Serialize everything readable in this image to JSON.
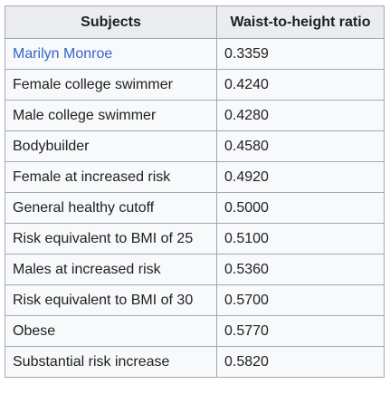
{
  "table": {
    "headers": [
      "Subjects",
      "Waist-to-height ratio"
    ],
    "rows": [
      {
        "subject": "Marilyn Monroe",
        "ratio": "0.3359",
        "is_link": true
      },
      {
        "subject": "Female college swimmer",
        "ratio": "0.4240",
        "is_link": false
      },
      {
        "subject": "Male college swimmer",
        "ratio": "0.4280",
        "is_link": false
      },
      {
        "subject": "Bodybuilder",
        "ratio": "0.4580",
        "is_link": false
      },
      {
        "subject": "Female at increased risk",
        "ratio": "0.4920",
        "is_link": false
      },
      {
        "subject": "General healthy cutoff",
        "ratio": "0.5000",
        "is_link": false
      },
      {
        "subject": "Risk equivalent to BMI of 25",
        "ratio": "0.5100",
        "is_link": false
      },
      {
        "subject": "Males at increased risk",
        "ratio": "0.5360",
        "is_link": false
      },
      {
        "subject": "Risk equivalent to BMI of 30",
        "ratio": "0.5700",
        "is_link": false
      },
      {
        "subject": "Obese",
        "ratio": "0.5770",
        "is_link": false
      },
      {
        "subject": "Substantial risk increase",
        "ratio": "0.5820",
        "is_link": false
      }
    ]
  },
  "colors": {
    "link": "#3366cc",
    "header_bg": "#eaecf0",
    "cell_bg": "#f8f9fa",
    "border": "#a2a9b1",
    "text": "#202122"
  }
}
